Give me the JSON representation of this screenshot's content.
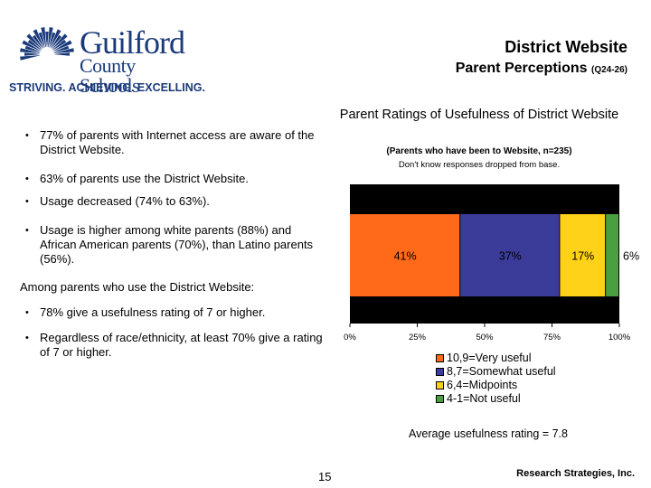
{
  "logo": {
    "name": "Guilford",
    "sub": "County Schools",
    "tagline": "STRIVING. ACHIEVING. EXCELLING.",
    "color": "#1a3a7a"
  },
  "header": {
    "title": "District Website",
    "subtitle": "Parent Perceptions",
    "subtitle_note": "(Q24-26)"
  },
  "bullets": [
    "77% of parents with Internet access are aware of the District Website.",
    "63% of parents use the District Website.",
    "Usage decreased (74% to 63%).",
    "Usage is higher among white parents (88%) and African American parents (70%), than Latino parents (56%)."
  ],
  "among": "Among parents who use the District Website:",
  "bullets2": [
    "78% give a usefulness rating of 7 or higher.",
    "Regardless of race/ethnicity, at least 70% give a rating of 7 or higher."
  ],
  "chart_data": {
    "type": "bar",
    "orientation": "horizontal-stacked",
    "title": "Parent Ratings of Usefulness of District Website",
    "subtitle": "(Parents who have been to Website, n=235)",
    "note": "Don't know responses dropped from base.",
    "xlim": [
      0,
      100
    ],
    "x_ticks": [
      "0%",
      "25%",
      "50%",
      "75%",
      "100%"
    ],
    "plot_background": "#000000",
    "series": [
      {
        "name": "10,9=Very useful",
        "value": 41,
        "label": "41%",
        "color": "#ff6a1a"
      },
      {
        "name": "8,7=Somewhat useful",
        "value": 37,
        "label": "37%",
        "color": "#3b3b9a"
      },
      {
        "name": "6,4=Midpoints",
        "value": 17,
        "label": "17%",
        "color": "#ffd21a"
      },
      {
        "name": "4-1=Not useful",
        "value": 6,
        "label": "6%",
        "color": "#4aa040"
      }
    ]
  },
  "average": "Average usefulness rating = 7.8",
  "page_number": "15",
  "footer": "Research Strategies, Inc."
}
